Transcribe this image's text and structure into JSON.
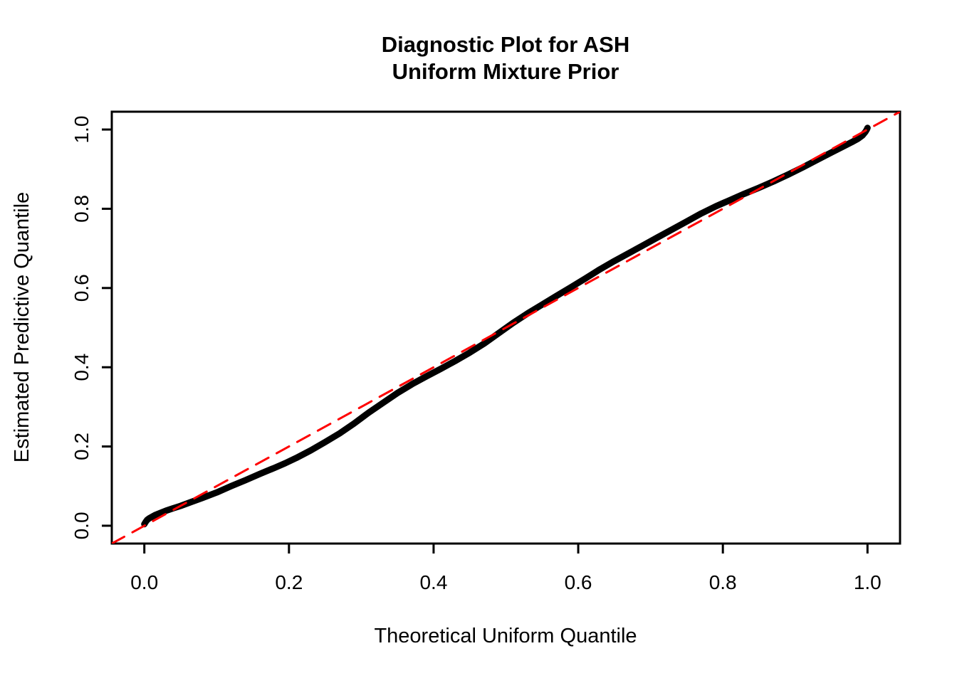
{
  "chart_data": {
    "type": "line",
    "subtype": "qq-diagnostic-plot",
    "title": "Diagnostic Plot for ASH Uniform Mixture Prior",
    "title_lines": [
      "Diagnostic Plot for ASH",
      "Uniform Mixture Prior"
    ],
    "xlabel": "Theoretical Uniform Quantile",
    "ylabel": "Estimated Predictive Quantile",
    "xlim": [
      -0.045,
      1.045
    ],
    "ylim": [
      -0.045,
      1.045
    ],
    "x_ticks": [
      0.0,
      0.2,
      0.4,
      0.6,
      0.8,
      1.0
    ],
    "y_ticks": [
      0.0,
      0.2,
      0.4,
      0.6,
      0.8,
      1.0
    ],
    "x_tick_labels": [
      "0.0",
      "0.2",
      "0.4",
      "0.6",
      "0.8",
      "1.0"
    ],
    "y_tick_labels": [
      "0.0",
      "0.2",
      "0.4",
      "0.6",
      "0.8",
      "1.0"
    ],
    "grid": false,
    "legend": "none",
    "series": [
      {
        "name": "estimated-predictive-quantile-curve",
        "color": "#000000",
        "style": "solid",
        "stroke_width": 9,
        "points": [
          [
            0.0,
            0.004
          ],
          [
            0.002,
            0.01
          ],
          [
            0.004,
            0.015
          ],
          [
            0.007,
            0.019
          ],
          [
            0.01,
            0.022
          ],
          [
            0.015,
            0.027
          ],
          [
            0.022,
            0.032
          ],
          [
            0.03,
            0.038
          ],
          [
            0.04,
            0.044
          ],
          [
            0.05,
            0.05
          ],
          [
            0.065,
            0.06
          ],
          [
            0.08,
            0.07
          ],
          [
            0.1,
            0.084
          ],
          [
            0.12,
            0.1
          ],
          [
            0.14,
            0.115
          ],
          [
            0.16,
            0.131
          ],
          [
            0.18,
            0.146
          ],
          [
            0.195,
            0.158
          ],
          [
            0.21,
            0.171
          ],
          [
            0.23,
            0.19
          ],
          [
            0.25,
            0.211
          ],
          [
            0.27,
            0.233
          ],
          [
            0.29,
            0.258
          ],
          [
            0.31,
            0.285
          ],
          [
            0.33,
            0.31
          ],
          [
            0.35,
            0.335
          ],
          [
            0.37,
            0.357
          ],
          [
            0.39,
            0.377
          ],
          [
            0.41,
            0.396
          ],
          [
            0.43,
            0.416
          ],
          [
            0.45,
            0.437
          ],
          [
            0.47,
            0.46
          ],
          [
            0.49,
            0.486
          ],
          [
            0.51,
            0.512
          ],
          [
            0.53,
            0.536
          ],
          [
            0.55,
            0.558
          ],
          [
            0.57,
            0.58
          ],
          [
            0.59,
            0.602
          ],
          [
            0.61,
            0.624
          ],
          [
            0.63,
            0.647
          ],
          [
            0.65,
            0.668
          ],
          [
            0.67,
            0.688
          ],
          [
            0.69,
            0.708
          ],
          [
            0.71,
            0.728
          ],
          [
            0.73,
            0.748
          ],
          [
            0.75,
            0.768
          ],
          [
            0.77,
            0.788
          ],
          [
            0.79,
            0.806
          ],
          [
            0.81,
            0.822
          ],
          [
            0.83,
            0.838
          ],
          [
            0.85,
            0.853
          ],
          [
            0.87,
            0.869
          ],
          [
            0.89,
            0.886
          ],
          [
            0.91,
            0.904
          ],
          [
            0.93,
            0.923
          ],
          [
            0.95,
            0.942
          ],
          [
            0.965,
            0.956
          ],
          [
            0.978,
            0.968
          ],
          [
            0.987,
            0.977
          ],
          [
            0.993,
            0.985
          ],
          [
            0.997,
            0.994
          ],
          [
            0.999,
            1.0
          ],
          [
            1.0,
            1.004
          ]
        ]
      },
      {
        "name": "reference-diagonal-line",
        "color": "#FF0000",
        "style": "dashed",
        "stroke_width": 3,
        "dash_pattern": [
          20,
          13
        ],
        "points": [
          [
            -0.045,
            -0.045
          ],
          [
            1.045,
            1.045
          ]
        ]
      }
    ],
    "styles": {
      "curve_color": "#000000",
      "reference_color": "#FF0000",
      "frame_color": "#000000",
      "background": "#FFFFFF"
    }
  }
}
